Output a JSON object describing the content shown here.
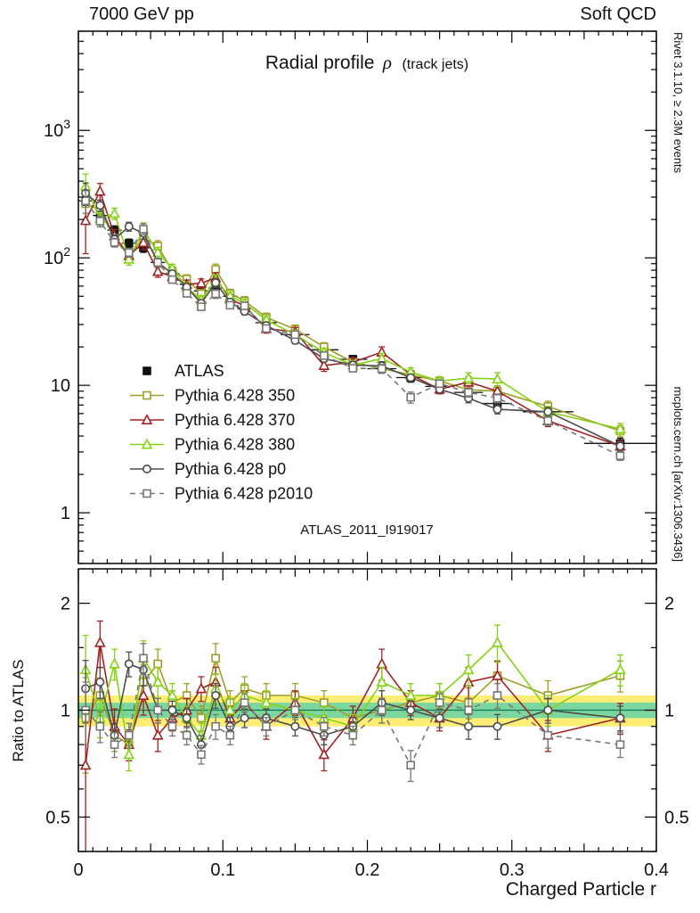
{
  "header": {
    "left": "7000 GeV pp",
    "right": "Soft QCD"
  },
  "title": {
    "main": "Radial profile",
    "symbol": "ρ",
    "suffix": "(track jets)"
  },
  "watermark": "ATLAS_2011_I919017",
  "side_notes": {
    "top": "Rivet 3.1.10, ≥ 2.3M events",
    "bottom": "mcplots.cern.ch [arXiv:1306.3436]"
  },
  "axes": {
    "xlabel": "Charged Particle r",
    "ratio_ylabel": "Ratio to ATLAS"
  },
  "chart_data": {
    "type": "line",
    "x": [
      0.005,
      0.015,
      0.025,
      0.035,
      0.045,
      0.055,
      0.065,
      0.075,
      0.085,
      0.095,
      0.105,
      0.115,
      0.13,
      0.15,
      0.17,
      0.19,
      0.21,
      0.23,
      0.25,
      0.27,
      0.29,
      0.325,
      0.375
    ],
    "xlim": [
      0,
      0.4
    ],
    "xticks": [
      0,
      0.1,
      0.2,
      0.3,
      0.4
    ],
    "main_panel": {
      "yscale": "log",
      "ylim": [
        0.4,
        6000
      ],
      "yticks": [
        1,
        10,
        100,
        1000
      ]
    },
    "ratio_panel": {
      "yscale": "log",
      "ylim": [
        0.4,
        2.5
      ],
      "yticks": [
        0.5,
        1,
        2
      ],
      "yticks_minor": [
        0.4,
        0.6,
        0.7,
        0.8,
        0.9,
        1.5
      ],
      "band_yellow": [
        0.9,
        1.1
      ],
      "band_green": [
        0.95,
        1.05
      ]
    },
    "colors": {
      "band_yellow": "#ffee75",
      "band_green": "#7cd6a0",
      "ref_line": "#0f7a4d"
    },
    "reference": {
      "name": "ATLAS",
      "marker": "square-filled",
      "color": "#111111",
      "values": [
        280,
        215,
        165,
        130,
        120,
        92,
        75,
        62,
        55,
        58,
        50,
        40,
        31,
        25,
        19,
        16,
        13.5,
        11.5,
        9.8,
        8.8,
        7.2,
        6.2,
        3.5
      ],
      "rel_err": [
        0.1,
        0.08,
        0.08,
        0.08,
        0.08,
        0.07,
        0.07,
        0.07,
        0.07,
        0.07,
        0.07,
        0.07,
        0.07,
        0.07,
        0.07,
        0.07,
        0.08,
        0.08,
        0.08,
        0.08,
        0.08,
        0.08,
        0.1
      ]
    },
    "series": [
      {
        "name": "Pythia 6.428 350",
        "color": "#9e9e2a",
        "marker": "square-open",
        "line": "solid",
        "values": [
          266,
          237,
          140,
          104,
          144,
          124,
          78.8,
          68.2,
          52.3,
          81.2,
          52.5,
          46,
          34.1,
          27.5,
          20,
          15.2,
          13.5,
          12.1,
          10.8,
          9.24,
          9.0,
          6.82,
          4.38
        ],
        "ratio_to_atlas": [
          0.95,
          1.1,
          0.85,
          0.8,
          1.2,
          1.35,
          1.05,
          1.1,
          0.95,
          1.4,
          1.05,
          1.15,
          1.1,
          1.1,
          1.05,
          0.95,
          1.0,
          1.05,
          1.1,
          1.05,
          1.25,
          1.1,
          1.25
        ],
        "rel_err": [
          0.3,
          0.12,
          0.1,
          0.1,
          0.12,
          0.1,
          0.08,
          0.08,
          0.08,
          0.1,
          0.08,
          0.08,
          0.08,
          0.08,
          0.08,
          0.08,
          0.08,
          0.08,
          0.08,
          0.1,
          0.1,
          0.1,
          0.1
        ]
      },
      {
        "name": "Pythia 6.428 370",
        "color": "#a32222",
        "marker": "triangle-open",
        "line": "solid",
        "values": [
          196,
          333,
          149,
          104,
          132,
          78.2,
          71.3,
          62,
          63.3,
          69.6,
          47.5,
          42,
          27.9,
          26.3,
          14.3,
          15.2,
          18.2,
          12.1,
          9.31,
          10.6,
          9.0,
          5.27,
          3.33
        ],
        "ratio_to_atlas": [
          0.7,
          1.55,
          0.9,
          0.8,
          1.1,
          0.85,
          0.95,
          1.0,
          1.15,
          1.2,
          0.95,
          1.05,
          0.9,
          1.05,
          0.75,
          0.95,
          1.35,
          1.05,
          0.95,
          1.2,
          1.25,
          0.85,
          0.95
        ],
        "rel_err": [
          0.45,
          0.15,
          0.12,
          0.1,
          0.12,
          0.1,
          0.08,
          0.08,
          0.08,
          0.1,
          0.08,
          0.08,
          0.08,
          0.08,
          0.1,
          0.08,
          0.1,
          0.08,
          0.08,
          0.1,
          0.1,
          0.1,
          0.1
        ]
      },
      {
        "name": "Pythia 6.428 380",
        "color": "#84d313",
        "marker": "triangle-open",
        "line": "solid",
        "values": [
          364,
          204,
          223,
          97.5,
          168,
          110,
          82.5,
          58.9,
          46.8,
          66.7,
          50,
          44,
          32.6,
          25,
          18.1,
          14.4,
          16.2,
          12.7,
          10.8,
          11.4,
          11.2,
          6.2,
          4.55
        ],
        "ratio_to_atlas": [
          1.3,
          0.95,
          1.35,
          0.75,
          1.4,
          1.2,
          1.1,
          0.95,
          0.85,
          1.15,
          1.0,
          1.1,
          1.05,
          1.0,
          0.95,
          0.9,
          1.2,
          1.1,
          1.1,
          1.3,
          1.55,
          1.0,
          1.3
        ],
        "rel_err": [
          0.25,
          0.12,
          0.1,
          0.1,
          0.12,
          0.1,
          0.08,
          0.08,
          0.08,
          0.1,
          0.08,
          0.08,
          0.08,
          0.08,
          0.08,
          0.08,
          0.1,
          0.08,
          0.08,
          0.1,
          0.12,
          0.1,
          0.1
        ]
      },
      {
        "name": "Pythia 6.428 p0",
        "color": "#4d4d4d",
        "marker": "circle-open",
        "line": "solid",
        "values": [
          322,
          258,
          140,
          176,
          156,
          92,
          75,
          58.9,
          44,
          63.8,
          45,
          38,
          29.5,
          22.5,
          16.2,
          14.4,
          14.2,
          11.5,
          9.31,
          7.92,
          6.48,
          6.2,
          3.33
        ],
        "ratio_to_atlas": [
          1.15,
          1.2,
          0.85,
          1.35,
          1.3,
          1.0,
          1.0,
          0.95,
          0.8,
          1.1,
          0.9,
          0.95,
          0.95,
          0.9,
          0.85,
          0.9,
          1.05,
          1.0,
          0.95,
          0.9,
          0.9,
          1.0,
          0.95
        ],
        "rel_err": [
          0.2,
          0.1,
          0.08,
          0.08,
          0.1,
          0.08,
          0.06,
          0.06,
          0.06,
          0.08,
          0.06,
          0.06,
          0.06,
          0.06,
          0.06,
          0.06,
          0.08,
          0.06,
          0.06,
          0.08,
          0.08,
          0.08,
          0.08
        ]
      },
      {
        "name": "Pythia 6.428 p2010",
        "color": "#777777",
        "marker": "square-open",
        "line": "dashed",
        "values": [
          280,
          194,
          132,
          110,
          168,
          92,
          67.5,
          52.7,
          41.3,
          52.2,
          42.5,
          42,
          27.9,
          25,
          17.1,
          13.6,
          13.5,
          8.05,
          10.3,
          8.8,
          7.92,
          5.27,
          2.8
        ],
        "ratio_to_atlas": [
          1.0,
          0.9,
          0.8,
          0.85,
          1.4,
          1.0,
          0.9,
          0.85,
          0.75,
          0.9,
          0.85,
          1.05,
          0.9,
          1.0,
          0.9,
          0.85,
          1.0,
          0.7,
          1.05,
          1.0,
          1.1,
          0.85,
          0.8
        ],
        "rel_err": [
          0.2,
          0.1,
          0.08,
          0.08,
          0.1,
          0.08,
          0.06,
          0.06,
          0.06,
          0.08,
          0.06,
          0.06,
          0.06,
          0.06,
          0.06,
          0.06,
          0.08,
          0.1,
          0.06,
          0.08,
          0.08,
          0.08,
          0.08
        ]
      }
    ]
  }
}
